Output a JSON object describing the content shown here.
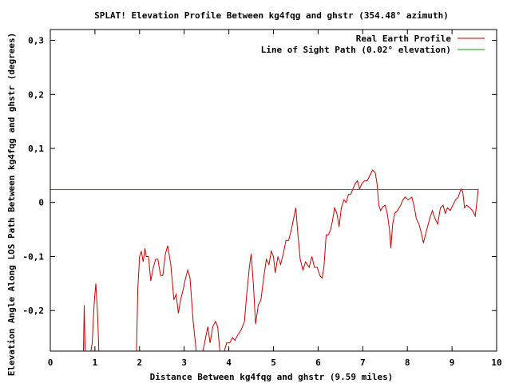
{
  "chart_data": {
    "type": "line",
    "title": "SPLAT! Elevation Profile Between kg4fqg and ghstr (354.48° azimuth)",
    "xlabel": "Distance Between kg4fqg and ghstr (9.59 miles)",
    "ylabel": "Elevation Angle Along LOS Path Between kg4fqg and ghstr (degrees)",
    "xlim": [
      0,
      10
    ],
    "ylim": [
      -0.275,
      0.32
    ],
    "xticks": [
      0,
      1,
      2,
      3,
      4,
      5,
      6,
      7,
      8,
      9,
      10
    ],
    "yticks": [
      {
        "value": 0.3,
        "label": "0,3"
      },
      {
        "value": 0.2,
        "label": "0,2"
      },
      {
        "value": 0.1,
        "label": "0,1"
      },
      {
        "value": 0,
        "label": "0"
      },
      {
        "value": -0.1,
        "label": "-0,1"
      },
      {
        "value": -0.2,
        "label": "-0,2"
      }
    ],
    "legend_position": "top-right",
    "series": [
      {
        "name": "Real Earth Profile",
        "color": "#cc0000",
        "points": [
          [
            0.74,
            -0.28
          ],
          [
            0.76,
            -0.19
          ],
          [
            0.78,
            -0.27
          ],
          [
            0.8,
            -0.28
          ],
          [
            0.9,
            -0.28
          ],
          [
            0.94,
            -0.26
          ],
          [
            0.98,
            -0.19
          ],
          [
            1.02,
            -0.15
          ],
          [
            1.06,
            -0.21
          ],
          [
            1.09,
            -0.28
          ],
          [
            1.93,
            -0.28
          ],
          [
            1.96,
            -0.16
          ],
          [
            2.0,
            -0.1
          ],
          [
            2.04,
            -0.09
          ],
          [
            2.08,
            -0.11
          ],
          [
            2.12,
            -0.085
          ],
          [
            2.15,
            -0.1
          ],
          [
            2.2,
            -0.1
          ],
          [
            2.25,
            -0.145
          ],
          [
            2.31,
            -0.12
          ],
          [
            2.36,
            -0.105
          ],
          [
            2.41,
            -0.105
          ],
          [
            2.47,
            -0.135
          ],
          [
            2.52,
            -0.135
          ],
          [
            2.58,
            -0.095
          ],
          [
            2.63,
            -0.08
          ],
          [
            2.7,
            -0.115
          ],
          [
            2.77,
            -0.18
          ],
          [
            2.82,
            -0.17
          ],
          [
            2.87,
            -0.205
          ],
          [
            2.92,
            -0.18
          ],
          [
            2.98,
            -0.16
          ],
          [
            3.03,
            -0.14
          ],
          [
            3.08,
            -0.125
          ],
          [
            3.13,
            -0.14
          ],
          [
            3.2,
            -0.22
          ],
          [
            3.27,
            -0.275
          ],
          [
            3.42,
            -0.275
          ],
          [
            3.48,
            -0.25
          ],
          [
            3.53,
            -0.23
          ],
          [
            3.58,
            -0.26
          ],
          [
            3.64,
            -0.23
          ],
          [
            3.7,
            -0.22
          ],
          [
            3.75,
            -0.23
          ],
          [
            3.8,
            -0.275
          ],
          [
            3.9,
            -0.275
          ],
          [
            3.95,
            -0.26
          ],
          [
            4.02,
            -0.26
          ],
          [
            4.08,
            -0.25
          ],
          [
            4.14,
            -0.255
          ],
          [
            4.2,
            -0.245
          ],
          [
            4.28,
            -0.235
          ],
          [
            4.35,
            -0.22
          ],
          [
            4.4,
            -0.17
          ],
          [
            4.46,
            -0.12
          ],
          [
            4.5,
            -0.095
          ],
          [
            4.55,
            -0.15
          ],
          [
            4.6,
            -0.225
          ],
          [
            4.66,
            -0.19
          ],
          [
            4.72,
            -0.18
          ],
          [
            4.78,
            -0.14
          ],
          [
            4.84,
            -0.105
          ],
          [
            4.9,
            -0.115
          ],
          [
            4.95,
            -0.09
          ],
          [
            5.0,
            -0.1
          ],
          [
            5.04,
            -0.13
          ],
          [
            5.1,
            -0.1
          ],
          [
            5.16,
            -0.115
          ],
          [
            5.22,
            -0.095
          ],
          [
            5.28,
            -0.07
          ],
          [
            5.34,
            -0.07
          ],
          [
            5.4,
            -0.05
          ],
          [
            5.45,
            -0.03
          ],
          [
            5.5,
            -0.01
          ],
          [
            5.55,
            -0.06
          ],
          [
            5.6,
            -0.105
          ],
          [
            5.66,
            -0.125
          ],
          [
            5.72,
            -0.11
          ],
          [
            5.8,
            -0.12
          ],
          [
            5.86,
            -0.1
          ],
          [
            5.92,
            -0.12
          ],
          [
            5.98,
            -0.12
          ],
          [
            6.04,
            -0.135
          ],
          [
            6.09,
            -0.14
          ],
          [
            6.13,
            -0.12
          ],
          [
            6.18,
            -0.06
          ],
          [
            6.23,
            -0.06
          ],
          [
            6.28,
            -0.05
          ],
          [
            6.32,
            -0.035
          ],
          [
            6.37,
            -0.01
          ],
          [
            6.42,
            -0.02
          ],
          [
            6.47,
            -0.045
          ],
          [
            6.52,
            -0.01
          ],
          [
            6.58,
            0.005
          ],
          [
            6.63,
            0.0
          ],
          [
            6.68,
            0.015
          ],
          [
            6.73,
            0.015
          ],
          [
            6.78,
            0.025
          ],
          [
            6.83,
            0.035
          ],
          [
            6.88,
            0.04
          ],
          [
            6.93,
            0.025
          ],
          [
            6.98,
            0.035
          ],
          [
            7.04,
            0.04
          ],
          [
            7.1,
            0.04
          ],
          [
            7.16,
            0.05
          ],
          [
            7.22,
            0.06
          ],
          [
            7.28,
            0.055
          ],
          [
            7.32,
            0.035
          ],
          [
            7.36,
            -0.005
          ],
          [
            7.4,
            -0.015
          ],
          [
            7.45,
            -0.008
          ],
          [
            7.5,
            -0.005
          ],
          [
            7.55,
            -0.02
          ],
          [
            7.6,
            -0.05
          ],
          [
            7.63,
            -0.085
          ],
          [
            7.67,
            -0.04
          ],
          [
            7.72,
            -0.02
          ],
          [
            7.78,
            -0.015
          ],
          [
            7.85,
            -0.005
          ],
          [
            7.9,
            0.005
          ],
          [
            7.95,
            0.01
          ],
          [
            8.02,
            0.005
          ],
          [
            8.1,
            0.01
          ],
          [
            8.16,
            -0.01
          ],
          [
            8.2,
            -0.03
          ],
          [
            8.26,
            -0.04
          ],
          [
            8.31,
            -0.055
          ],
          [
            8.36,
            -0.075
          ],
          [
            8.42,
            -0.055
          ],
          [
            8.5,
            -0.03
          ],
          [
            8.56,
            -0.015
          ],
          [
            8.62,
            -0.03
          ],
          [
            8.68,
            -0.04
          ],
          [
            8.74,
            -0.01
          ],
          [
            8.8,
            -0.005
          ],
          [
            8.85,
            -0.02
          ],
          [
            8.9,
            -0.01
          ],
          [
            8.96,
            -0.015
          ],
          [
            9.02,
            -0.005
          ],
          [
            9.08,
            0.005
          ],
          [
            9.14,
            0.01
          ],
          [
            9.2,
            0.025
          ],
          [
            9.24,
            0.02
          ],
          [
            9.28,
            -0.01
          ],
          [
            9.33,
            -0.005
          ],
          [
            9.4,
            -0.01
          ],
          [
            9.46,
            -0.015
          ],
          [
            9.52,
            -0.025
          ],
          [
            9.59,
            0.025
          ]
        ]
      },
      {
        "name": "Line of Sight Path (0.02° elevation)",
        "color": "#00a000",
        "points": [
          [
            0.0,
            0.024
          ],
          [
            9.59,
            0.024
          ]
        ]
      }
    ]
  }
}
